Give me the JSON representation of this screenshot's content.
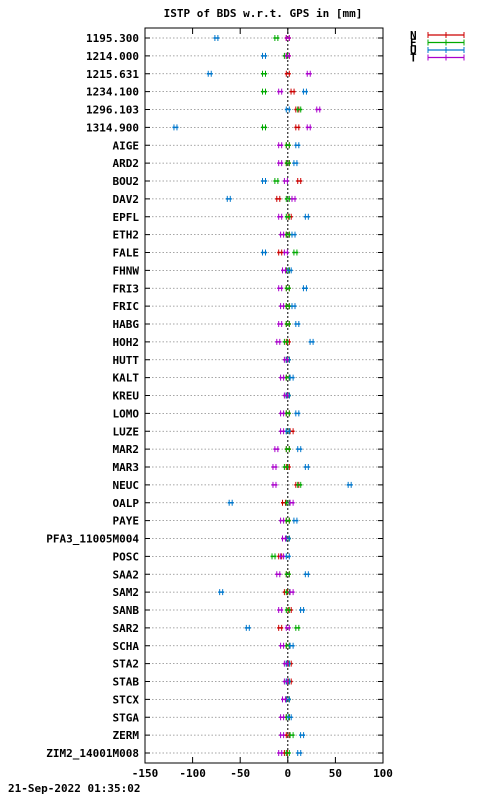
{
  "chart_data": {
    "type": "scatter",
    "title": "ISTP of BDS w.r.t. GPS in [mm]",
    "xlabel": "",
    "ylabel": "",
    "xlim": [
      -150,
      100
    ],
    "xticks": [
      -150,
      -100,
      -50,
      0,
      50,
      100
    ],
    "grid": "horizontal dotted",
    "legend_position": "top-right outside",
    "timestamp": "21-Sep-2022 01:35:02",
    "stations": [
      "1195.300",
      "1214.000",
      "1215.631",
      "1234.100",
      "1296.103",
      "1314.900",
      "AIGE",
      "ARD2",
      "BOU2",
      "DAV2",
      "EPFL",
      "ETH2",
      "FALE",
      "FHNW",
      "FRI3",
      "FRIC",
      "HABG",
      "HOH2",
      "HUTT",
      "KALT",
      "KREU",
      "LOMO",
      "LUZE",
      "MAR2",
      "MAR3",
      "NEUC",
      "OALP",
      "PAYE",
      "PFA3_11005M004",
      "POSC",
      "SAA2",
      "SAM2",
      "SANB",
      "SAR2",
      "SCHA",
      "STA2",
      "STAB",
      "STCX",
      "STGA",
      "ZERM",
      "ZIM2_14001M008"
    ],
    "series": [
      {
        "name": "N",
        "color": "#cc0000",
        "values": [
          0,
          0,
          0,
          5,
          10,
          10,
          0,
          0,
          12,
          -10,
          2,
          0,
          -8,
          0,
          0,
          0,
          0,
          0,
          0,
          0,
          0,
          0,
          4,
          0,
          0,
          10,
          -4,
          0,
          0,
          -8,
          0,
          -2,
          2,
          -8,
          0,
          2,
          2,
          0,
          0,
          0,
          -2
        ]
      },
      {
        "name": "E",
        "color": "#00aa00",
        "values": [
          -12,
          -2,
          -25,
          -25,
          12,
          -25,
          0,
          0,
          -12,
          0,
          0,
          0,
          8,
          0,
          0,
          0,
          0,
          -2,
          0,
          0,
          0,
          0,
          0,
          0,
          -2,
          12,
          0,
          0,
          0,
          -15,
          0,
          0,
          0,
          10,
          0,
          0,
          0,
          0,
          0,
          4,
          0
        ]
      },
      {
        "name": "U",
        "color": "#0077cc",
        "values": [
          -75,
          -25,
          -82,
          18,
          0,
          -118,
          10,
          8,
          -25,
          -62,
          20,
          6,
          -25,
          2,
          18,
          6,
          10,
          25,
          0,
          4,
          0,
          10,
          0,
          12,
          20,
          65,
          -60,
          8,
          0,
          0,
          20,
          -70,
          15,
          -42,
          4,
          0,
          0,
          0,
          2,
          15,
          12
        ]
      },
      {
        "name": "T",
        "color": "#aa00cc",
        "values": [
          0,
          0,
          22,
          -8,
          32,
          22,
          -8,
          -8,
          -2,
          6,
          -8,
          -6,
          -2,
          -4,
          -8,
          -6,
          -8,
          -10,
          -2,
          -6,
          -2,
          -6,
          -6,
          -12,
          -14,
          -14,
          4,
          -6,
          -4,
          -6,
          -10,
          4,
          -8,
          0,
          -6,
          -2,
          -2,
          -4,
          -6,
          -6,
          -8
        ]
      }
    ]
  }
}
